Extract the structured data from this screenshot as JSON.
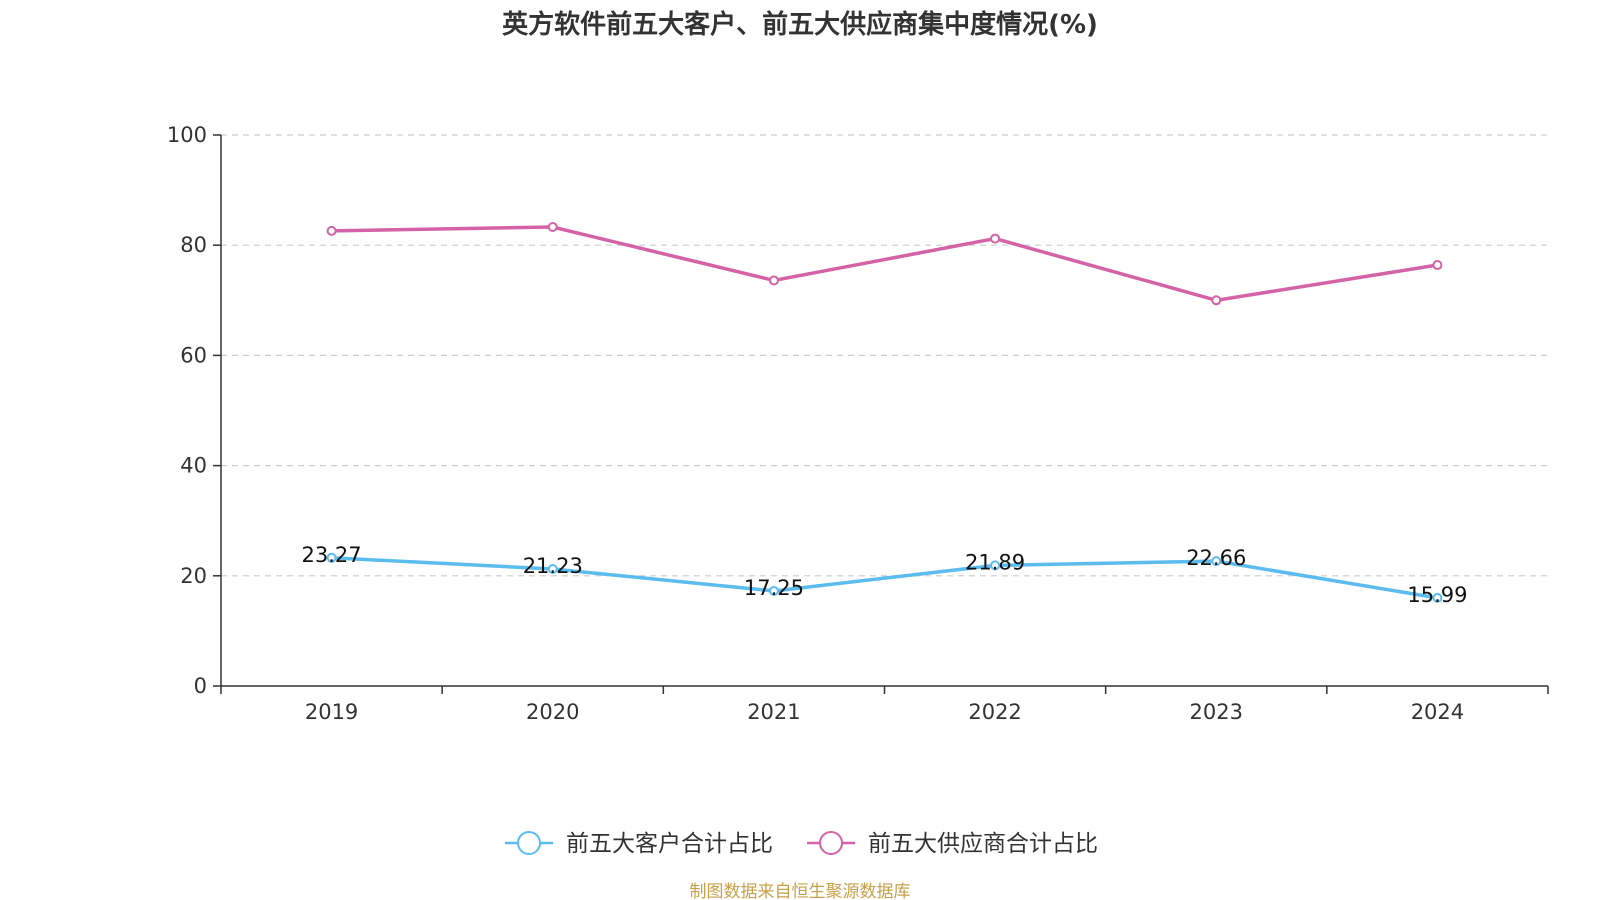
{
  "chart_data": {
    "type": "line",
    "title": "英方软件前五大客户、前五大供应商集中度情况(%)",
    "categories": [
      "2019",
      "2020",
      "2021",
      "2022",
      "2023",
      "2024"
    ],
    "ylim": [
      0,
      100
    ],
    "yticks": [
      0,
      20,
      40,
      60,
      80,
      100
    ],
    "grid": true,
    "legend_position": "bottom",
    "series": [
      {
        "name": "前五大客户合计占比",
        "color": "#5bbcef",
        "values": [
          23.27,
          21.23,
          17.25,
          21.89,
          22.66,
          15.99
        ],
        "show_labels": true,
        "labels": [
          "23.27",
          "21.23",
          "17.25",
          "21.89",
          "22.66",
          "15.99"
        ]
      },
      {
        "name": "前五大供应商合计占比",
        "color": "#d462a6",
        "values": [
          82.6,
          83.3,
          73.6,
          81.2,
          70.0,
          76.4
        ],
        "show_labels": false
      }
    ],
    "source": "制图数据来自恒生聚源数据库"
  }
}
